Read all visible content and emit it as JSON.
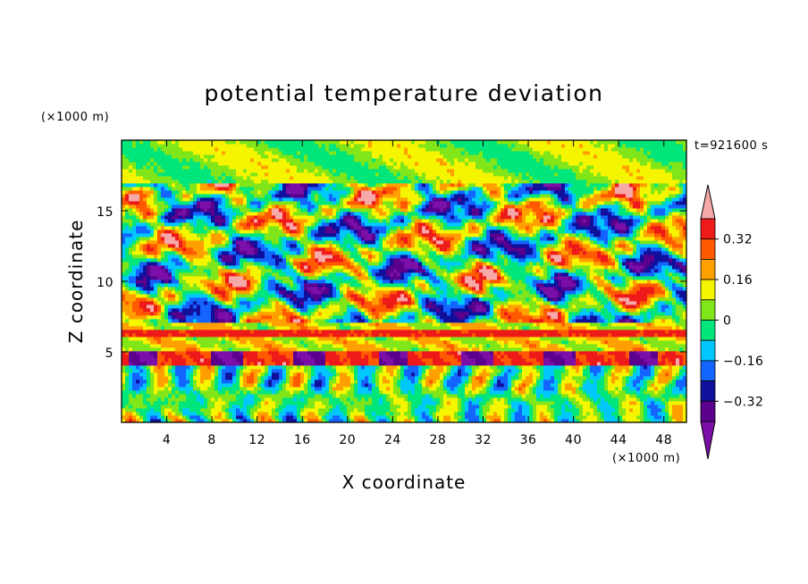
{
  "chart_data": {
    "type": "heatmap",
    "title": "potential temperature deviation",
    "xlabel": "X coordinate",
    "ylabel": "Z coordinate",
    "x_unit": "(×1000 m)",
    "y_unit": "(×1000 m)",
    "time_label": "t=921600 s",
    "xlim": [
      0,
      50
    ],
    "ylim": [
      0,
      20
    ],
    "x_ticks": [
      4,
      8,
      12,
      16,
      20,
      24,
      28,
      32,
      36,
      40,
      44,
      48
    ],
    "y_ticks": [
      5,
      10,
      15
    ],
    "colorbar": {
      "levels": [
        -0.4,
        -0.32,
        -0.24,
        -0.16,
        -0.08,
        0,
        0.08,
        0.16,
        0.24,
        0.32,
        0.4
      ],
      "tick_labels": [
        "0.32",
        "0.16",
        "0",
        "−0.16",
        "−0.32"
      ],
      "tick_values": [
        0.32,
        0.16,
        0,
        -0.16,
        -0.32
      ],
      "colors_low_to_high": [
        "#7b0fa8",
        "#5a008c",
        "#10109c",
        "#1464ff",
        "#00c8ff",
        "#00e67a",
        "#80e619",
        "#f5f500",
        "#ffa000",
        "#ff5a00",
        "#ee1a1a",
        "#f7a8a8"
      ]
    },
    "bands": [
      {
        "z_range": [
          0,
          4
        ],
        "value_range": [
          -0.3,
          0.4
        ],
        "pattern": "vertical convective plumes"
      },
      {
        "z_range": [
          4,
          5
        ],
        "value_range": [
          -0.4,
          0.4
        ],
        "pattern": "strong positive layer with negative cells"
      },
      {
        "z_range": [
          5,
          7
        ],
        "value_range": [
          0.1,
          0.4
        ],
        "pattern": "horizontal warm layer"
      },
      {
        "z_range": [
          7,
          12
        ],
        "value_range": [
          -0.4,
          0.4
        ],
        "pattern": "mixed patches"
      },
      {
        "z_range": [
          12,
          17
        ],
        "value_range": [
          -0.4,
          0.4
        ],
        "pattern": "alternating warm and cold blobs"
      },
      {
        "z_range": [
          17,
          20
        ],
        "value_range": [
          -0.1,
          0.15
        ],
        "pattern": "weak deviation"
      }
    ]
  }
}
